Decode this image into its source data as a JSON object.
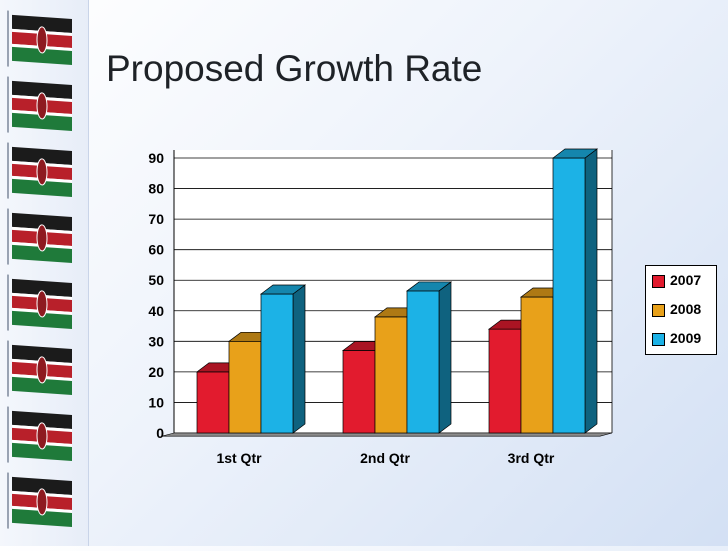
{
  "slide": {
    "title": "Proposed Growth Rate"
  },
  "chart_data": {
    "type": "bar",
    "title": "",
    "xlabel": "",
    "ylabel": "",
    "categories": [
      "1st Qtr",
      "2nd Qtr",
      "3rd Qtr"
    ],
    "series": [
      {
        "name": "2007",
        "values": [
          20,
          27,
          34
        ],
        "color": "#e21b2e"
      },
      {
        "name": "2008",
        "values": [
          30,
          38,
          44.5
        ],
        "color": "#e8a11a"
      },
      {
        "name": "2009",
        "values": [
          45.5,
          46.5,
          90
        ],
        "color": "#1cb2e6"
      }
    ],
    "ylim": [
      0,
      90
    ],
    "yticks": [
      0,
      10,
      20,
      30,
      40,
      50,
      60,
      70,
      80,
      90
    ],
    "grid": true,
    "legend_position": "right",
    "style": "3d-clustered-column"
  }
}
